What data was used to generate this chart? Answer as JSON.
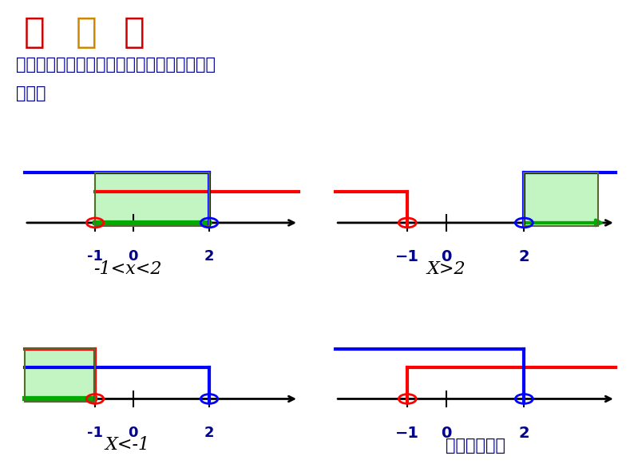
{
  "bg_color": "#ffffff",
  "title_zhi": "试",
  "title_yi": "一",
  "title_shi2": "试",
  "title_line1": "不等式组的解集在数轴上表示如图，其解集是",
  "title_line2": "什么？",
  "panel_labels": [
    "-1<x<2",
    "X>2",
    "X<-1",
    "不等式组无解"
  ],
  "tick_labels_1": [
    "-1",
    "0",
    "2"
  ],
  "tick_labels_2": [
    "−1",
    "0",
    "2"
  ],
  "axis_color": "#000000",
  "red_color": "#ff0000",
  "blue_color": "#0000ff",
  "green_color": "#00aa00",
  "shade_color": "#90EE90",
  "shade_edge": "#556b2f"
}
